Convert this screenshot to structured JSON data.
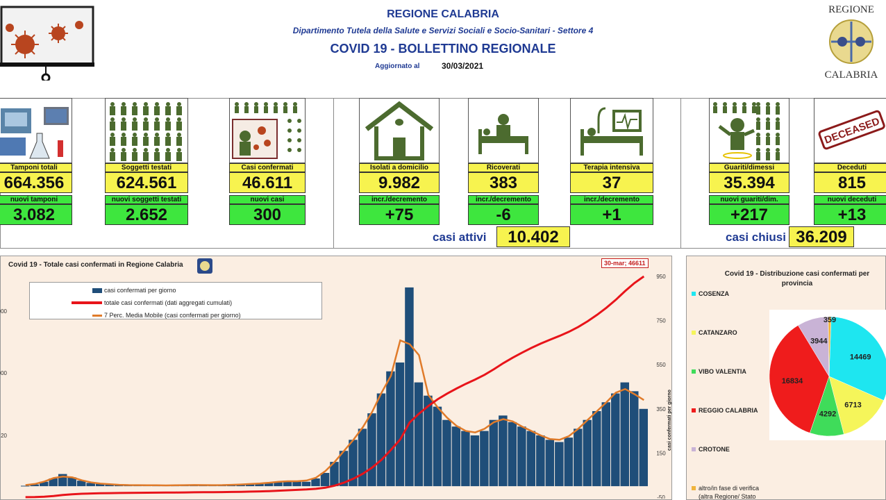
{
  "header": {
    "region": "REGIONE CALABRIA",
    "department": "Dipartimento Tutela della Salute e Servizi Sociali e Socio-Sanitari - Settore 4",
    "bulletin": "COVID 19 - BOLLETTINO REGIONALE",
    "updated_label": "Aggiornato al",
    "updated_date": "30/03/2021",
    "logo_top": "REGIONE",
    "logo_bottom": "CALABRIA"
  },
  "colors": {
    "title_blue": "#1f3a93",
    "label_yellow": "#f7f34f",
    "delta_green": "#3ee63e",
    "icon_green": "#4c6b2f",
    "bar_blue": "#1f4e79",
    "total_red": "#e8141a",
    "avg_orange": "#e07b2a"
  },
  "cards": [
    {
      "id": "tamponi",
      "label": "Tamponi totali",
      "value": "664.356",
      "delta_label": "nuovi tamponi",
      "delta": "3.082",
      "icon": "lab-equipment-icon"
    },
    {
      "id": "soggetti",
      "label": "Soggetti testati",
      "value": "624.561",
      "delta_label": "nuovi soggetti testati",
      "delta": "2.652",
      "icon": "people-grid-icon"
    },
    {
      "id": "casi",
      "label": "Casi confermati",
      "value": "46.611",
      "delta_label": "nuovi casi",
      "delta": "300",
      "icon": "virus-person-icon"
    },
    {
      "id": "isolati",
      "label": "Isolati a domicilio",
      "value": "9.982",
      "delta_label": "incr./decremento",
      "delta": "+75",
      "icon": "house-icon"
    },
    {
      "id": "ricoverati",
      "label": "Ricoverati",
      "value": "383",
      "delta_label": "incr./decremento",
      "delta": "-6",
      "icon": "hospital-bed-icon"
    },
    {
      "id": "terapia",
      "label": "Terapia intensiva",
      "value": "37",
      "delta_label": "incr./decremento",
      "delta": "+1",
      "icon": "icu-monitor-icon"
    },
    {
      "id": "guariti",
      "label": "Guariti/dimessi",
      "value": "35.394",
      "delta_label": "nuovi guariti/dim.",
      "delta": "+217",
      "icon": "recovered-person-icon"
    },
    {
      "id": "deceduti",
      "label": "Deceduti",
      "value": "815",
      "delta_label": "nuovi deceduti",
      "delta": "+13",
      "icon": "deceased-stamp-icon"
    }
  ],
  "deceased_stamp_text": "DECEASED",
  "totals": {
    "attivi_label": "casi attivi",
    "attivi_value": "10.402",
    "chiusi_label": "casi chiusi",
    "chiusi_value": "36.209"
  },
  "main_chart": {
    "title": "Covid 19 - Totale casi confermati in Regione Calabria",
    "callout": "30-mar; 46611",
    "right_axis_label": "casi confermati per giorno",
    "right_ticks": [
      "950",
      "750",
      "550",
      "350",
      "150",
      "-50"
    ],
    "left_ticks": [
      "000",
      "000",
      "20"
    ],
    "legend": [
      {
        "label": "casi confermati per giorno",
        "color": "#1f4e79",
        "kind": "bar"
      },
      {
        "label": "totale casi confermati (dati aggregati cumulati)",
        "color": "#e8141a",
        "kind": "line"
      },
      {
        "label": "7 Perc. Media Mobile (casi confermati per giorno)",
        "color": "#e07b2a",
        "kind": "line"
      }
    ]
  },
  "chart_data": [
    {
      "type": "bar",
      "title": "Covid 19 - Totale casi confermati in Regione Calabria",
      "ylabel_right": "casi confermati per giorno",
      "ylim_right": [
        -50,
        950
      ],
      "series": [
        {
          "name": "casi confermati per giorno",
          "kind": "bar",
          "note": "daily values, approx. weekly samples",
          "values": [
            2,
            8,
            20,
            35,
            55,
            40,
            25,
            15,
            12,
            8,
            6,
            5,
            4,
            5,
            3,
            4,
            3,
            5,
            6,
            5,
            4,
            5,
            6,
            8,
            10,
            12,
            15,
            20,
            25,
            22,
            20,
            35,
            60,
            110,
            160,
            210,
            260,
            330,
            420,
            520,
            560,
            900,
            470,
            410,
            360,
            300,
            270,
            250,
            230,
            250,
            300,
            320,
            290,
            270,
            250,
            230,
            210,
            200,
            220,
            260,
            300,
            340,
            380,
            420,
            470,
            430,
            350
          ]
        },
        {
          "name": "totale casi confermati (dati aggregati cumulati)",
          "kind": "line",
          "values_note": "cumulative total reaching 46611 on 30-mar"
        },
        {
          "name": "7 Perc. Media Mobile (casi confermati per giorno)",
          "kind": "line"
        }
      ],
      "annotation": {
        "label": "30-mar; 46611",
        "value": 46611
      }
    },
    {
      "type": "pie",
      "title": "Covid 19 - Distribuzione casi confermati per provincia",
      "categories": [
        "COSENZA",
        "CATANZARO",
        "VIBO VALENTIA",
        "REGGIO CALABRIA",
        "CROTONE",
        "altro/in fase di verifica (altra Regione/ Stato"
      ],
      "values": [
        14469,
        6713,
        4292,
        16834,
        3944,
        359
      ],
      "colors": [
        "#1ee6f0",
        "#f5f55a",
        "#3fdc5a",
        "#ef1c1c",
        "#c9b3d6",
        "#f0b43c"
      ]
    }
  ],
  "pie_panel": {
    "title_line1": "Covid 19 - Distribuzione casi confermati per",
    "title_line2": "provincia",
    "provinces": [
      {
        "name": "COSENZA",
        "color": "#1ee6f0"
      },
      {
        "name": "CATANZARO",
        "color": "#f5f55a"
      },
      {
        "name": "VIBO VALENTIA",
        "color": "#3fdc5a"
      },
      {
        "name": "REGGIO CALABRIA",
        "color": "#ef1c1c"
      },
      {
        "name": "CROTONE",
        "color": "#c9b3d6"
      },
      {
        "name": "altro/in fase di verifica",
        "color": "#f0b43c"
      }
    ],
    "other_line2": "(altra Regione/ Stato"
  }
}
